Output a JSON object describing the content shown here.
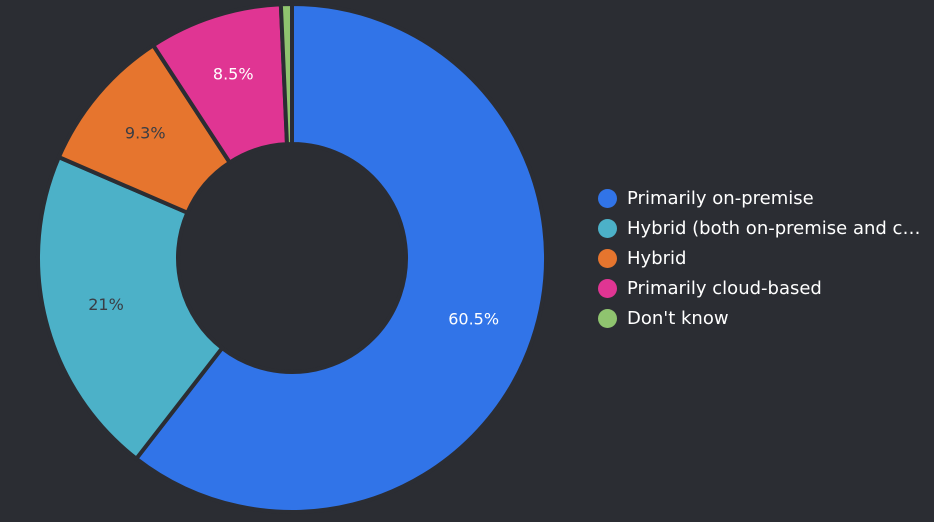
{
  "chart_data": {
    "type": "pie",
    "donut": true,
    "legend_position": "right",
    "slices": [
      {
        "label": "Primarily on-premise",
        "value": 60.5,
        "display": "60.5%",
        "color": "#3174e8",
        "label_color": "#ffffff"
      },
      {
        "label": "Hybrid (both on-premise and cloud-based)",
        "value": 21.0,
        "display": "21%",
        "color": "#4cb1c8",
        "label_color": "#3a3d44"
      },
      {
        "label": "Hybrid",
        "value": 9.3,
        "display": "9.3%",
        "color": "#e6752e",
        "label_color": "#3a3d44"
      },
      {
        "label": "Primarily cloud-based",
        "value": 8.5,
        "display": "8.5%",
        "color": "#e03593",
        "label_color": "#ffffff"
      },
      {
        "label": "Don't know",
        "value": 0.7,
        "display": "",
        "color": "#8fc46f",
        "label_color": "#3a3d44"
      }
    ]
  }
}
